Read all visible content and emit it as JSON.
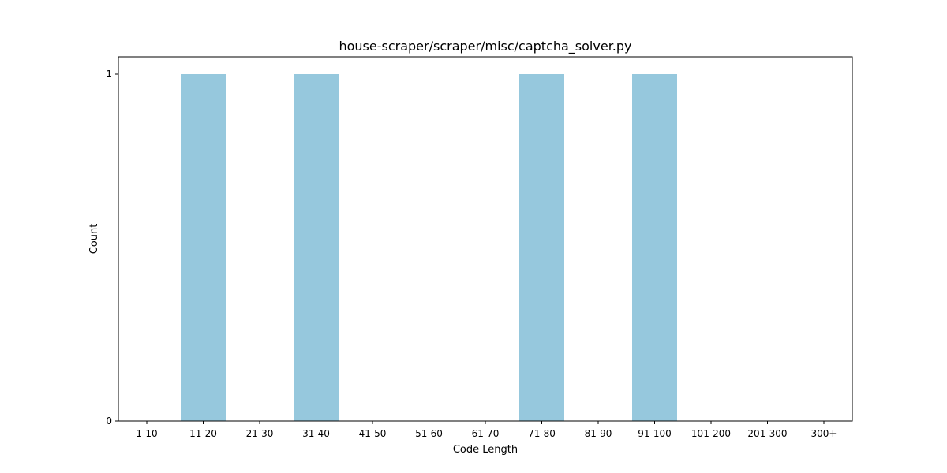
{
  "chart_data": {
    "type": "bar",
    "title": "house-scraper/scraper/misc/captcha_solver.py",
    "xlabel": "Code Length",
    "ylabel": "Count",
    "categories": [
      "1-10",
      "11-20",
      "21-30",
      "31-40",
      "41-50",
      "51-60",
      "61-70",
      "71-80",
      "81-90",
      "91-100",
      "101-200",
      "201-300",
      "300+"
    ],
    "values": [
      0,
      1,
      0,
      1,
      0,
      0,
      0,
      1,
      0,
      1,
      0,
      0,
      0
    ],
    "yticks": [
      "0",
      "1"
    ],
    "ylim": [
      0,
      1.05
    ],
    "grid": false,
    "legend": "none",
    "bar_color": "#96c8dd"
  }
}
